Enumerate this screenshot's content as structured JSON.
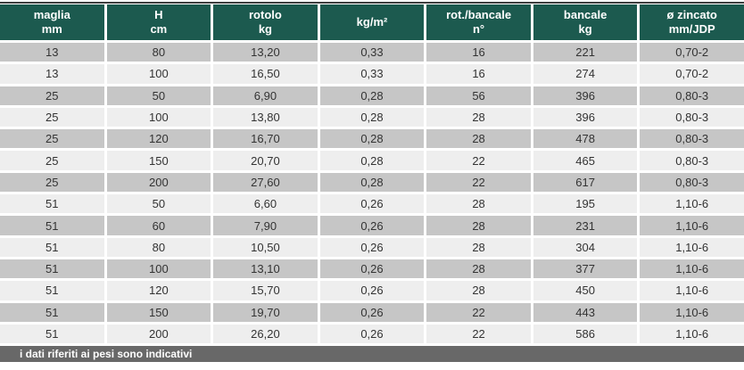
{
  "chart_data": {
    "type": "table",
    "title": "",
    "columns": [
      {
        "label": "maglia",
        "sub": "mm"
      },
      {
        "label": "H",
        "sub": "cm"
      },
      {
        "label": "rotolo",
        "sub": "kg"
      },
      {
        "label": "kg/m²",
        "sub": ""
      },
      {
        "label": "rot./bancale",
        "sub": "n°"
      },
      {
        "label": "bancale",
        "sub": "kg"
      },
      {
        "label": "ø zincato",
        "sub": "mm/JDP"
      }
    ],
    "rows": [
      [
        "13",
        "80",
        "13,20",
        "0,33",
        "16",
        "221",
        "0,70-2"
      ],
      [
        "13",
        "100",
        "16,50",
        "0,33",
        "16",
        "274",
        "0,70-2"
      ],
      [
        "25",
        "50",
        "6,90",
        "0,28",
        "56",
        "396",
        "0,80-3"
      ],
      [
        "25",
        "100",
        "13,80",
        "0,28",
        "28",
        "396",
        "0,80-3"
      ],
      [
        "25",
        "120",
        "16,70",
        "0,28",
        "28",
        "478",
        "0,80-3"
      ],
      [
        "25",
        "150",
        "20,70",
        "0,28",
        "22",
        "465",
        "0,80-3"
      ],
      [
        "25",
        "200",
        "27,60",
        "0,28",
        "22",
        "617",
        "0,80-3"
      ],
      [
        "51",
        "50",
        "6,60",
        "0,26",
        "28",
        "195",
        "1,10-6"
      ],
      [
        "51",
        "60",
        "7,90",
        "0,26",
        "28",
        "231",
        "1,10-6"
      ],
      [
        "51",
        "80",
        "10,50",
        "0,26",
        "28",
        "304",
        "1,10-6"
      ],
      [
        "51",
        "100",
        "13,10",
        "0,26",
        "28",
        "377",
        "1,10-6"
      ],
      [
        "51",
        "120",
        "15,70",
        "0,26",
        "28",
        "450",
        "1,10-6"
      ],
      [
        "51",
        "150",
        "19,70",
        "0,26",
        "22",
        "443",
        "1,10-6"
      ],
      [
        "51",
        "200",
        "26,20",
        "0,26",
        "22",
        "586",
        "1,10-6"
      ]
    ],
    "footer_note": "i dati riferiti ai pesi sono indicativi",
    "layout": {
      "first_data_row_shade": "dark",
      "row_alternation": "dark/light",
      "grid": "white 3px separators between all cells"
    }
  },
  "colors": {
    "header_bg": "#1c5a4f",
    "row_dark": "#c6c6c6",
    "row_light": "#eeeeee",
    "footer_bg": "#686868",
    "top_line": "#3f3f3f",
    "cell_text": "#333333",
    "header_text": "#ffffff"
  }
}
